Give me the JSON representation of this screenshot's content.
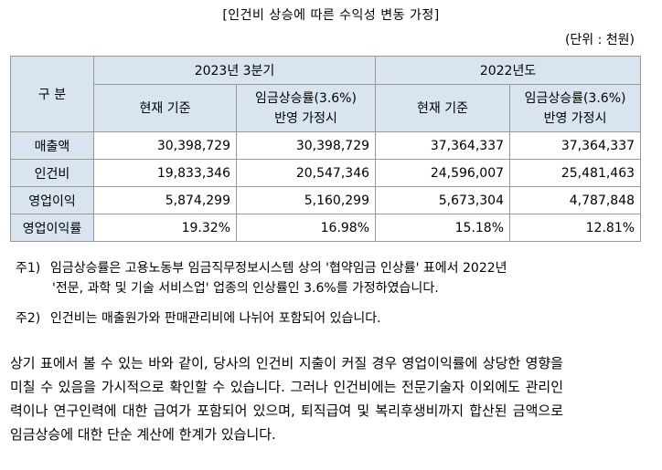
{
  "title": "[인건비 상승에 따른 수익성 변동 가정]",
  "unit": "(단위 : 천원)",
  "table": {
    "corner": "구 분",
    "periods": [
      "2023년 3분기",
      "2022년도"
    ],
    "sub_current": "현재 기준",
    "sub_applied_line1": "임금상승률(3.6%)",
    "sub_applied_line2": "반영 가정시",
    "rows": [
      {
        "label": "매출액",
        "values": [
          "30,398,729",
          "30,398,729",
          "37,364,337",
          "37,364,337"
        ]
      },
      {
        "label": "인건비",
        "values": [
          "19,833,346",
          "20,547,346",
          "24,596,007",
          "25,481,463"
        ]
      },
      {
        "label": "영업이익",
        "values": [
          "5,874,299",
          "5,160,299",
          "5,673,304",
          "4,787,848"
        ]
      },
      {
        "label": "영업이익률",
        "values": [
          "19.32%",
          "16.98%",
          "15.18%",
          "12.81%"
        ]
      }
    ]
  },
  "notes": {
    "note1_num": "주1)",
    "note1_line1": "임금상승률은 고용노동부 임금직무정보시스템 상의 '협약임금 인상률' 표에서 2022년",
    "note1_line2": "'전문, 과학 및 기술 서비스업' 업종의 인상률인 3.6%를 가정하였습니다.",
    "note2_num": "주2)",
    "note2_text": "인건비는 매출원가와 판매관리비에 나뉘어 포함되어 있습니다."
  },
  "paragraph": "상기 표에서 볼 수 있는 바와 같이, 당사의 인건비 지출이 커질 경우 영업이익률에 상당한 영향을 미칠 수 있음을 가시적으로 확인할 수 있습니다. 그러나 인건비에는 전문기술자 이외에도 관리인력이나 연구인력에 대한 급여가 포함되어 있으며, 퇴직급여 및 복리후생비까지 합산된 금액으로 임금상승에 대한 단순 계산에 한계가 있습니다."
}
